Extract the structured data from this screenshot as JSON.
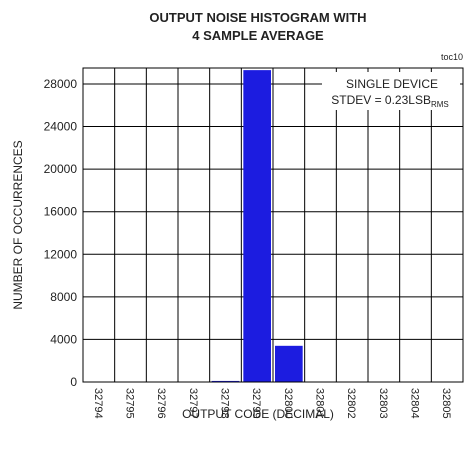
{
  "chart_data": {
    "type": "bar",
    "title": [
      "OUTPUT NOISE HISTOGRAM WITH",
      "4 SAMPLE AVERAGE"
    ],
    "figure_id": "toc10",
    "annotation": {
      "line1": "SINGLE DEVICE",
      "line2": "STDEV = 0.23LSB",
      "line2_subscript": "RMS"
    },
    "x_label": "OUTPUT CODE (DECIMAL)",
    "y_label": "NUMBER OF OCCURRENCES",
    "categories": [
      "32794",
      "32795",
      "32796",
      "32797",
      "32798",
      "32799",
      "32800",
      "32801",
      "32802",
      "32803",
      "32804",
      "32805"
    ],
    "values": [
      0,
      0,
      0,
      0,
      100,
      29300,
      3400,
      0,
      0,
      0,
      0,
      0
    ],
    "color": "#1c1ce0",
    "ylim": [
      0,
      29500
    ],
    "yticks": [
      0,
      4000,
      8000,
      12000,
      16000,
      20000,
      24000,
      28000
    ],
    "grid": true
  }
}
